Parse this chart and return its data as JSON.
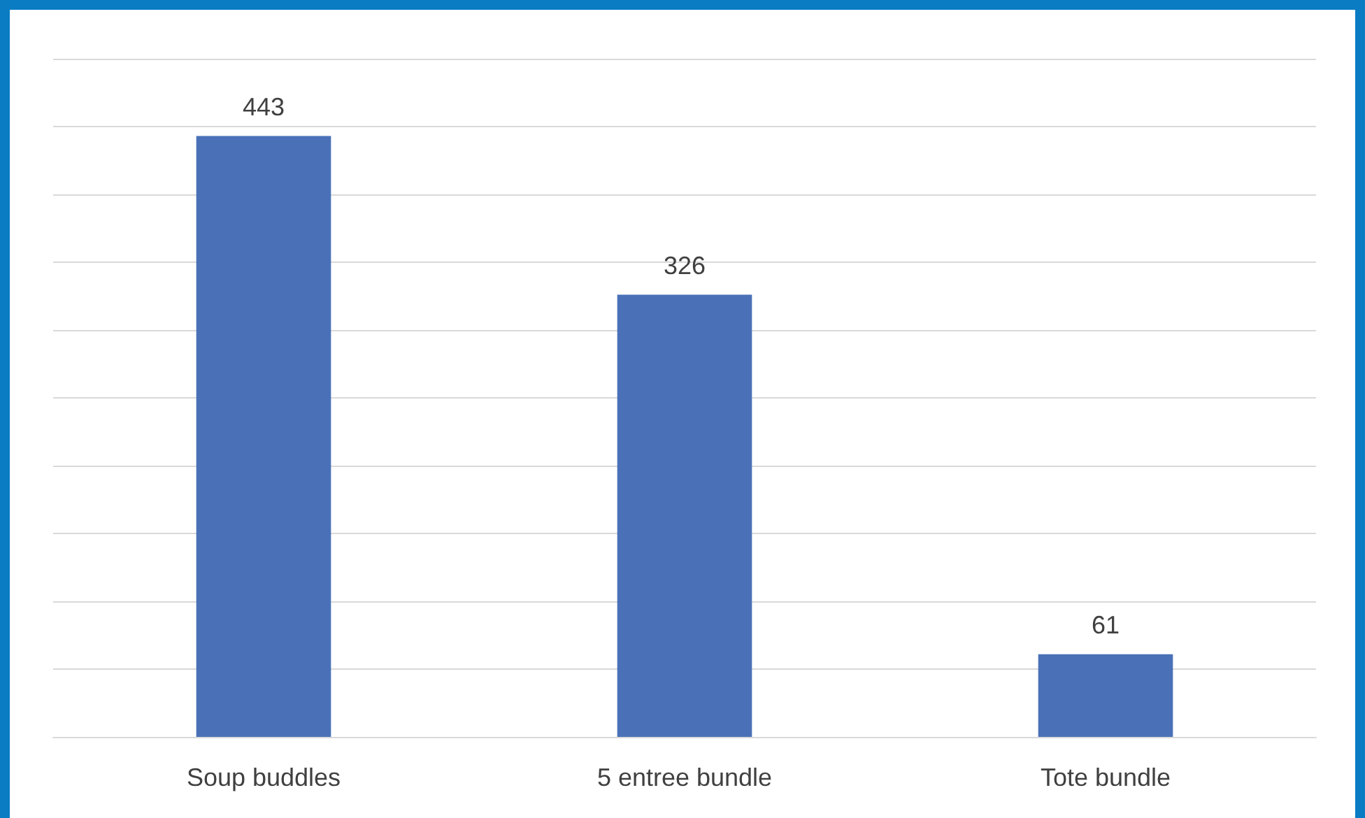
{
  "chart_data": {
    "type": "bar",
    "categories": [
      "Soup buddles",
      "5 entree bundle",
      "Tote bundle"
    ],
    "values": [
      443,
      326,
      61
    ],
    "color": "#4a71b8",
    "data_labels": true,
    "grid": "y",
    "tick_labels": "x",
    "ylim": [
      0,
      500
    ],
    "yticks": [
      {
        "value": 0,
        "label": null
      },
      {
        "value": 50,
        "label": null
      },
      {
        "value": 100,
        "label": null
      },
      {
        "value": 150,
        "label": null
      },
      {
        "value": 200,
        "label": null
      },
      {
        "value": 250,
        "label": null
      },
      {
        "value": 300,
        "label": null
      },
      {
        "value": 350,
        "label": null
      },
      {
        "value": 400,
        "label": null
      },
      {
        "value": 450,
        "label": null
      },
      {
        "value": 500,
        "label": null
      }
    ]
  }
}
